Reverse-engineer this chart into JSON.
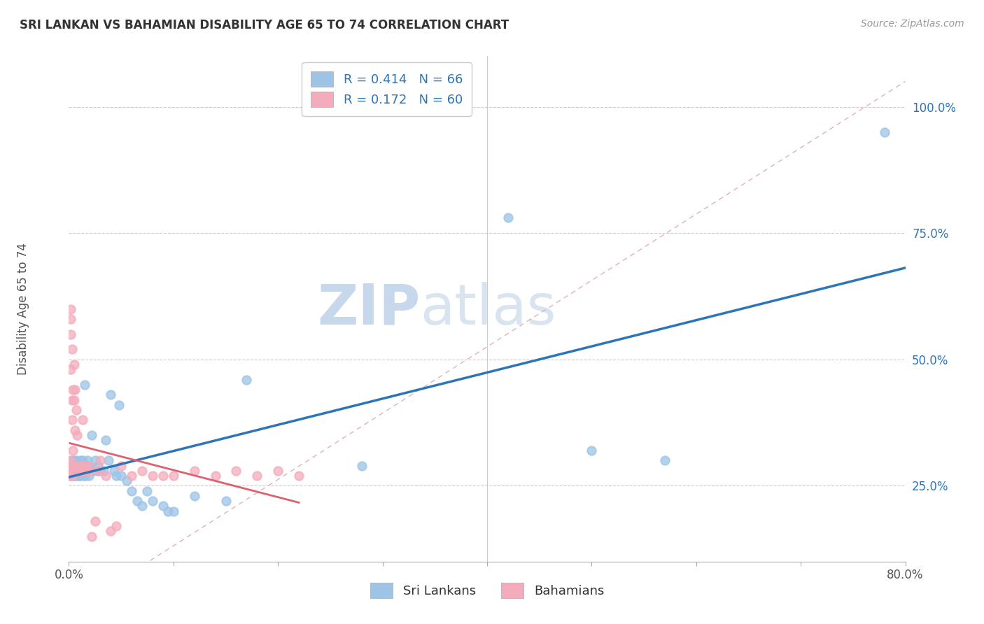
{
  "title": "SRI LANKAN VS BAHAMIAN DISABILITY AGE 65 TO 74 CORRELATION CHART",
  "source": "Source: ZipAtlas.com",
  "ylabel": "Disability Age 65 to 74",
  "xlim": [
    0.0,
    0.8
  ],
  "ylim": [
    0.1,
    1.1
  ],
  "ytick_values": [
    0.25,
    0.5,
    0.75,
    1.0
  ],
  "sri_lankan_color": "#9DC3E6",
  "bahamian_color": "#F4ABBB",
  "trend_sri_color": "#2E75B6",
  "trend_bah_color": "#E06070",
  "diagonal_color": "#D8A0A8",
  "legend_R_sri": "0.414",
  "legend_N_sri": "66",
  "legend_R_bah": "0.172",
  "legend_N_bah": "60",
  "watermark_zip": "ZIP",
  "watermark_atlas": "atlas",
  "sri_x": [
    0.001,
    0.002,
    0.002,
    0.003,
    0.003,
    0.004,
    0.004,
    0.005,
    0.005,
    0.005,
    0.006,
    0.006,
    0.007,
    0.007,
    0.008,
    0.008,
    0.009,
    0.009,
    0.01,
    0.01,
    0.011,
    0.011,
    0.012,
    0.012,
    0.013,
    0.013,
    0.014,
    0.015,
    0.015,
    0.016,
    0.017,
    0.018,
    0.018,
    0.019,
    0.02,
    0.022,
    0.023,
    0.025,
    0.027,
    0.028,
    0.03,
    0.033,
    0.035,
    0.038,
    0.04,
    0.043,
    0.045,
    0.048,
    0.05,
    0.055,
    0.06,
    0.065,
    0.07,
    0.075,
    0.08,
    0.09,
    0.095,
    0.1,
    0.12,
    0.15,
    0.17,
    0.28,
    0.42,
    0.5,
    0.57,
    0.78
  ],
  "sri_y": [
    0.27,
    0.28,
    0.29,
    0.27,
    0.3,
    0.28,
    0.29,
    0.27,
    0.3,
    0.28,
    0.27,
    0.29,
    0.28,
    0.3,
    0.27,
    0.28,
    0.27,
    0.29,
    0.27,
    0.28,
    0.3,
    0.27,
    0.28,
    0.29,
    0.28,
    0.3,
    0.27,
    0.45,
    0.28,
    0.27,
    0.29,
    0.28,
    0.3,
    0.27,
    0.29,
    0.35,
    0.28,
    0.3,
    0.28,
    0.29,
    0.28,
    0.28,
    0.34,
    0.3,
    0.43,
    0.28,
    0.27,
    0.41,
    0.27,
    0.26,
    0.24,
    0.22,
    0.21,
    0.24,
    0.22,
    0.21,
    0.2,
    0.2,
    0.23,
    0.22,
    0.46,
    0.29,
    0.78,
    0.32,
    0.3,
    0.95
  ],
  "bah_x": [
    0.001,
    0.001,
    0.001,
    0.001,
    0.002,
    0.002,
    0.002,
    0.002,
    0.003,
    0.003,
    0.003,
    0.003,
    0.004,
    0.004,
    0.004,
    0.004,
    0.005,
    0.005,
    0.005,
    0.006,
    0.006,
    0.006,
    0.007,
    0.007,
    0.008,
    0.008,
    0.009,
    0.009,
    0.01,
    0.01,
    0.011,
    0.012,
    0.013,
    0.013,
    0.014,
    0.015,
    0.016,
    0.017,
    0.018,
    0.019,
    0.02,
    0.022,
    0.025,
    0.028,
    0.03,
    0.035,
    0.04,
    0.045,
    0.05,
    0.06,
    0.07,
    0.08,
    0.09,
    0.1,
    0.12,
    0.14,
    0.16,
    0.18,
    0.2,
    0.22
  ],
  "bah_y": [
    0.27,
    0.28,
    0.29,
    0.3,
    0.55,
    0.58,
    0.48,
    0.6,
    0.38,
    0.42,
    0.52,
    0.27,
    0.28,
    0.32,
    0.44,
    0.28,
    0.29,
    0.42,
    0.49,
    0.36,
    0.44,
    0.28,
    0.29,
    0.4,
    0.28,
    0.35,
    0.28,
    0.29,
    0.28,
    0.28,
    0.28,
    0.28,
    0.29,
    0.38,
    0.28,
    0.29,
    0.28,
    0.28,
    0.28,
    0.29,
    0.28,
    0.15,
    0.18,
    0.28,
    0.3,
    0.27,
    0.16,
    0.17,
    0.29,
    0.27,
    0.28,
    0.27,
    0.27,
    0.27,
    0.28,
    0.27,
    0.28,
    0.27,
    0.28,
    0.27
  ]
}
